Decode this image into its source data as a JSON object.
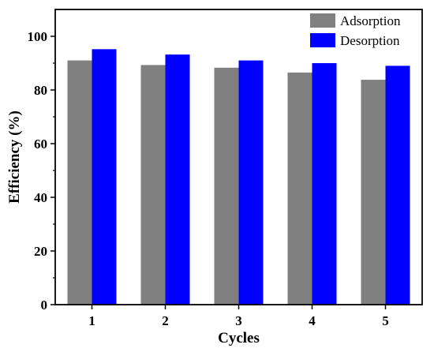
{
  "chart_data": {
    "type": "bar",
    "title": "",
    "xlabel": "Cycles",
    "ylabel": "Efficiency (%)",
    "categories": [
      "1",
      "2",
      "3",
      "4",
      "5"
    ],
    "ylim": [
      0,
      110
    ],
    "yticks": [
      "0",
      "20",
      "40",
      "60",
      "80",
      "100"
    ],
    "grid": false,
    "legend_position": "top-right",
    "series": [
      {
        "name": "Adsorption",
        "color": "#808080",
        "values": [
          91,
          89.3,
          88.3,
          86.5,
          83.8
        ]
      },
      {
        "name": "Desorption",
        "color": "#0000ff",
        "values": [
          95.2,
          93.2,
          91,
          90,
          89
        ]
      }
    ]
  }
}
